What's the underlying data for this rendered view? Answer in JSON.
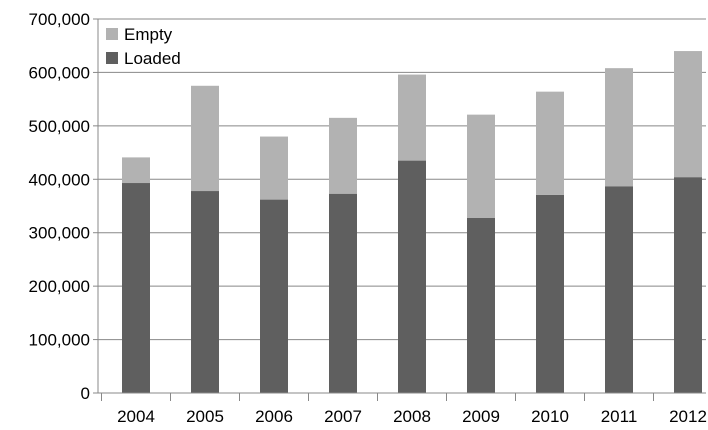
{
  "chart_data": {
    "type": "bar",
    "stacked": true,
    "title": "",
    "xlabel": "",
    "ylabel": "",
    "categories": [
      "2004",
      "2005",
      "2006",
      "2007",
      "2008",
      "2009",
      "2010",
      "2011",
      "2012"
    ],
    "series": [
      {
        "name": "Loaded",
        "color": "#5f5f5f",
        "values": [
          393000,
          378000,
          362000,
          373000,
          435000,
          328000,
          371000,
          387000,
          404000
        ]
      },
      {
        "name": "Empty",
        "color": "#b2b2b2",
        "values": [
          48000,
          197000,
          118000,
          142000,
          161000,
          193000,
          193000,
          221000,
          236000
        ]
      }
    ],
    "ylim": [
      0,
      700000
    ],
    "yticks": [
      0,
      100000,
      200000,
      300000,
      400000,
      500000,
      600000,
      700000
    ],
    "ytick_labels": [
      "0",
      "100,000",
      "200,000",
      "300,000",
      "400,000",
      "500,000",
      "600,000",
      "700,000"
    ],
    "grid": "horizontal",
    "legend_position": "top-left",
    "legend": [
      {
        "label": "Empty",
        "color": "#b2b2b2"
      },
      {
        "label": "Loaded",
        "color": "#5f5f5f"
      }
    ]
  }
}
